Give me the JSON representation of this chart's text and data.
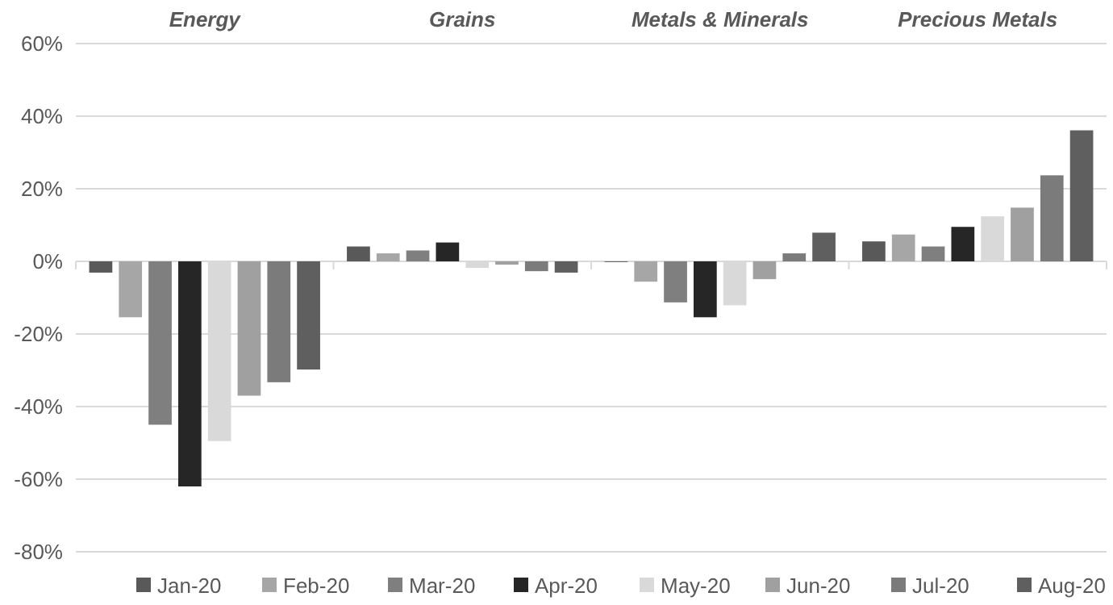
{
  "chart_data": {
    "type": "bar",
    "categories": [
      "Energy",
      "Grains",
      "Metals & Minerals",
      "Precious Metals"
    ],
    "series": [
      {
        "name": "Jan-20",
        "color": "#595959",
        "values": [
          -3.1,
          4.1,
          -0.2,
          5.5
        ]
      },
      {
        "name": "Feb-20",
        "color": "#a6a6a6",
        "values": [
          -15.4,
          2.2,
          -5.6,
          7.4
        ]
      },
      {
        "name": "Mar-20",
        "color": "#7f7f7f",
        "values": [
          -45,
          3,
          -11.3,
          4.1
        ]
      },
      {
        "name": "Apr-20",
        "color": "#262626",
        "values": [
          -62,
          5.2,
          -15.4,
          9.5
        ]
      },
      {
        "name": "May-20",
        "color": "#d9d9d9",
        "values": [
          -49.5,
          -1.8,
          -12.1,
          12.4
        ]
      },
      {
        "name": "Jun-20",
        "color": "#a0a0a0",
        "values": [
          -37,
          -0.9,
          -4.9,
          14.8
        ]
      },
      {
        "name": "Jul-20",
        "color": "#7b7b7b",
        "values": [
          -33.3,
          -2.7,
          2.2,
          23.7
        ]
      },
      {
        "name": "Aug-20",
        "color": "#5f5f5f",
        "values": [
          -29.8,
          -3.1,
          7.9,
          36.1
        ]
      }
    ],
    "ylim": [
      -80,
      60
    ],
    "yticks": [
      {
        "value": -80,
        "label": "-80%"
      },
      {
        "value": -60,
        "label": "-60%"
      },
      {
        "value": -40,
        "label": "-40%"
      },
      {
        "value": -20,
        "label": "-20%"
      },
      {
        "value": 0,
        "label": "0%"
      },
      {
        "value": 20,
        "label": "20%"
      },
      {
        "value": 40,
        "label": "40%"
      },
      {
        "value": 60,
        "label": "60%"
      }
    ],
    "grid": "y",
    "legend": "bottom"
  }
}
